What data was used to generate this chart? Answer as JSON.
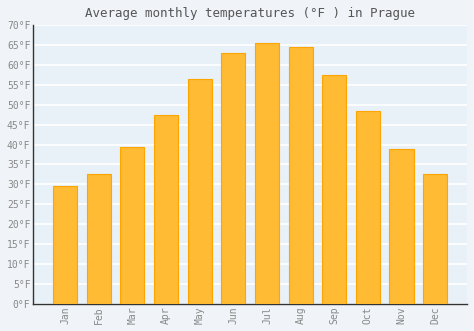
{
  "title": "Average monthly temperatures (°F ) in Prague",
  "months": [
    "Jan",
    "Feb",
    "Mar",
    "Apr",
    "May",
    "Jun",
    "Jul",
    "Aug",
    "Sep",
    "Oct",
    "Nov",
    "Dec"
  ],
  "values": [
    29.5,
    32.5,
    39.5,
    47.5,
    56.5,
    63.0,
    65.5,
    64.5,
    57.5,
    48.5,
    39.0,
    32.5
  ],
  "bar_color": "#FFBB33",
  "bar_edge_color": "#FFA500",
  "ylim": [
    0,
    70
  ],
  "yticks": [
    0,
    5,
    10,
    15,
    20,
    25,
    30,
    35,
    40,
    45,
    50,
    55,
    60,
    65,
    70
  ],
  "ytick_labels": [
    "0°F",
    "5°F",
    "10°F",
    "15°F",
    "20°F",
    "25°F",
    "30°F",
    "35°F",
    "40°F",
    "45°F",
    "50°F",
    "55°F",
    "60°F",
    "65°F",
    "70°F"
  ],
  "background_color": "#f0f4f8",
  "plot_bg_color": "#e8f0f8",
  "grid_color": "#ffffff",
  "title_fontsize": 9,
  "tick_fontsize": 7,
  "bar_width": 0.72
}
